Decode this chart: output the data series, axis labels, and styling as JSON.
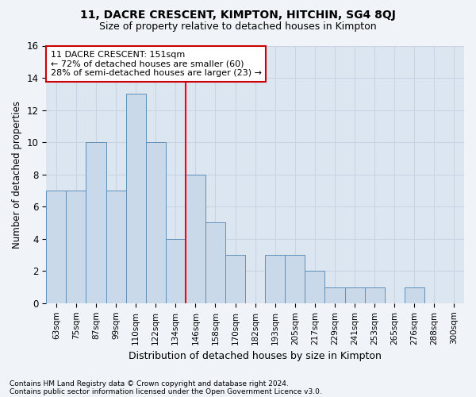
{
  "title": "11, DACRE CRESCENT, KIMPTON, HITCHIN, SG4 8QJ",
  "subtitle": "Size of property relative to detached houses in Kimpton",
  "xlabel": "Distribution of detached houses by size in Kimpton",
  "ylabel": "Number of detached properties",
  "bin_labels": [
    "63sqm",
    "75sqm",
    "87sqm",
    "99sqm",
    "110sqm",
    "122sqm",
    "134sqm",
    "146sqm",
    "158sqm",
    "170sqm",
    "182sqm",
    "193sqm",
    "205sqm",
    "217sqm",
    "229sqm",
    "241sqm",
    "253sqm",
    "265sqm",
    "276sqm",
    "288sqm",
    "300sqm"
  ],
  "bar_values": [
    7,
    7,
    10,
    7,
    13,
    10,
    4,
    8,
    5,
    3,
    0,
    3,
    3,
    2,
    1,
    1,
    1,
    0,
    1,
    0,
    0
  ],
  "bar_color": "#c9d9ea",
  "bar_edge_color": "#6090b8",
  "highlight_line_index": 7,
  "annotation_line1": "11 DACRE CRESCENT: 151sqm",
  "annotation_line2": "← 72% of detached houses are smaller (60)",
  "annotation_line3": "28% of semi-detached houses are larger (23) →",
  "annotation_box_color": "#ffffff",
  "annotation_box_edge": "#cc0000",
  "ylim": [
    0,
    16
  ],
  "yticks": [
    0,
    2,
    4,
    6,
    8,
    10,
    12,
    14,
    16
  ],
  "grid_color": "#c8d4e3",
  "bg_color": "#dce6f0",
  "fig_bg_color": "#f0f4f8",
  "footnote1": "Contains HM Land Registry data © Crown copyright and database right 2024.",
  "footnote2": "Contains public sector information licensed under the Open Government Licence v3.0."
}
